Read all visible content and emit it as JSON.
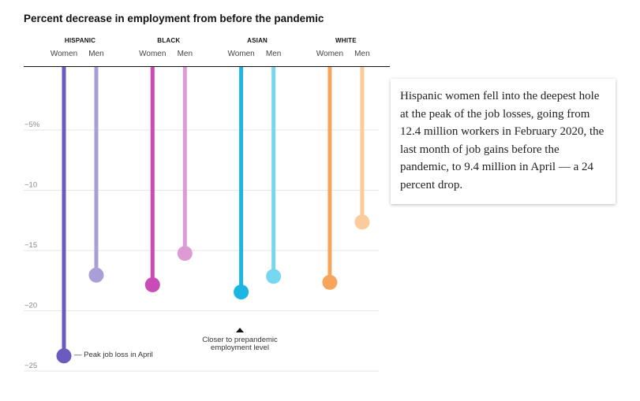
{
  "title": "Percent decrease in employment from before the pandemic",
  "callout_text": "Hispanic women fell into the deepest hole at the peak of the job losses, going from 12.4 million workers in February 2020, the last month of job gains before the pandemic, to 9.4 million in April — a 24 percent drop.",
  "annotations": {
    "peak": "— Peak job loss in April",
    "closer_line1": "Closer to prepandemic",
    "closer_line2": "employment level"
  },
  "chart_data": {
    "type": "lollipop",
    "title": "Percent decrease in employment from before the pandemic",
    "ylim": [
      -25.5,
      0
    ],
    "yticks": [
      {
        "value": -5,
        "label": "−5%"
      },
      {
        "value": -10,
        "label": "−10"
      },
      {
        "value": -15,
        "label": "−15"
      },
      {
        "value": -20,
        "label": "−20"
      },
      {
        "value": -25,
        "label": "−25"
      }
    ],
    "groups": [
      {
        "name": "HISPANIC",
        "bars": [
          {
            "label": "Women",
            "value": -24.0,
            "color": "#6a5bbf"
          },
          {
            "label": "Men",
            "value": -17.3,
            "color": "#a99fd6"
          }
        ]
      },
      {
        "name": "BLACK",
        "bars": [
          {
            "label": "Women",
            "value": -18.1,
            "color": "#c94bb5"
          },
          {
            "label": "Men",
            "value": -15.5,
            "color": "#dd9bd4"
          }
        ]
      },
      {
        "name": "ASIAN",
        "bars": [
          {
            "label": "Women",
            "value": -18.7,
            "color": "#1bb6e3"
          },
          {
            "label": "Men",
            "value": -17.4,
            "color": "#79d6f1"
          }
        ]
      },
      {
        "name": "WHITE",
        "bars": [
          {
            "label": "Women",
            "value": -17.9,
            "color": "#f6a55b"
          },
          {
            "label": "Men",
            "value": -12.9,
            "color": "#fbcb9b"
          }
        ]
      }
    ]
  }
}
